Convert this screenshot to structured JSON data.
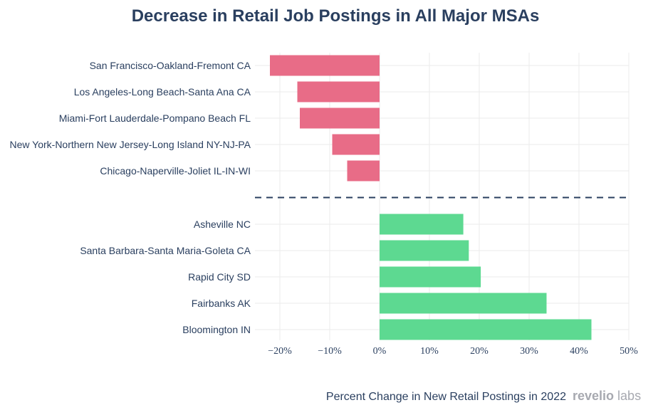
{
  "chart_data": {
    "type": "bar",
    "orientation": "horizontal",
    "title": "Decrease in Retail Job Postings in All Major MSAs",
    "xlabel": "Percent Change in New Retail Postings in 2022",
    "ylabel": "",
    "xlim": [
      -25,
      50
    ],
    "ticks": [
      -20,
      -10,
      0,
      10,
      20,
      30,
      40,
      50
    ],
    "tick_labels": [
      "−20%",
      "−10%",
      "0%",
      "10%",
      "20%",
      "30%",
      "40%",
      "50%"
    ],
    "grid": true,
    "groups": [
      {
        "name": "decline",
        "color": "#e86c87",
        "categories": [
          "San Francisco-Oakland-Fremont CA",
          "Los Angeles-Long Beach-Santa Ana CA",
          "Miami-Fort Lauderdale-Pompano Beach FL",
          "New York-Northern New Jersey-Long Island NY-NJ-PA",
          "Chicago-Naperville-Joliet IL-IN-WI"
        ],
        "values": [
          -22,
          -16.5,
          -16,
          -9.5,
          -6.5
        ]
      },
      {
        "name": "growth",
        "color": "#5dd991",
        "categories": [
          "Asheville NC",
          "Santa Barbara-Santa Maria-Goleta CA",
          "Rapid City SD",
          "Fairbanks AK",
          "Bloomington IN"
        ],
        "values": [
          16.8,
          17.9,
          20.3,
          33.5,
          42.5
        ]
      }
    ],
    "divider": "dashed line between groups"
  },
  "brand": {
    "part1": "revelio",
    "part2": " labs"
  }
}
